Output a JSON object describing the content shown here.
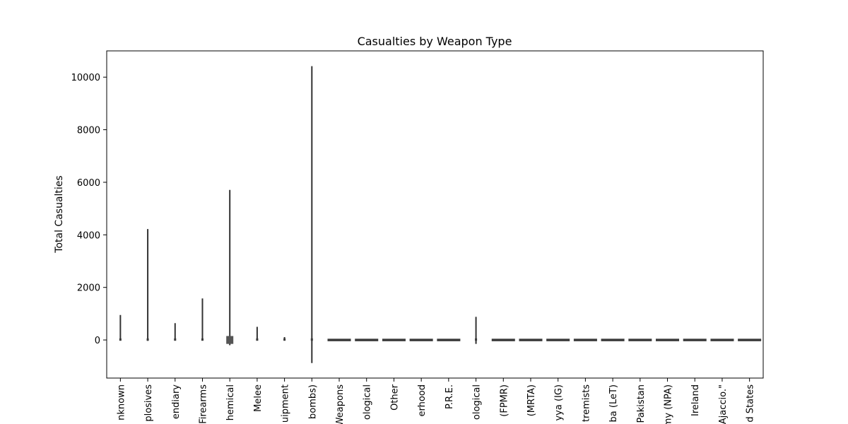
{
  "chart_data": {
    "type": "violin",
    "title": "Casualties by Weapon Type",
    "xlabel": "",
    "ylabel": "Total Casualties",
    "ylim": [
      -1450,
      11000
    ],
    "yticks": [
      0,
      2000,
      4000,
      6000,
      8000,
      10000
    ],
    "categories": [
      "nknown",
      "plosives",
      "endiary",
      "Firearms",
      "hemical",
      "Melee",
      "uipment",
      "bombs)",
      "Weapons",
      "ological",
      "Other",
      "erhood",
      "P.R.E.",
      "ological",
      "(FPMR)",
      "(MRTA)",
      "yya (IG)",
      "tremists",
      "ba (LeT)",
      "Pakistan",
      "my (NPA)",
      "Ireland",
      "Ajaccio.\"",
      "d States"
    ],
    "series": [
      {
        "values": [
          {
            "min": 0,
            "max": 950
          },
          {
            "min": -30,
            "max": 4220
          },
          {
            "min": 0,
            "max": 640
          },
          {
            "min": 0,
            "max": 1580
          },
          {
            "min": -200,
            "max": 5710
          },
          {
            "min": 0,
            "max": 500
          },
          {
            "min": -20,
            "max": 110
          },
          {
            "min": -880,
            "max": 10420
          },
          {
            "min": -20,
            "max": 20
          },
          {
            "min": -5,
            "max": 5
          },
          {
            "min": -5,
            "max": 40
          },
          {
            "min": 0,
            "max": 0
          },
          {
            "min": 0,
            "max": 0
          },
          {
            "min": -150,
            "max": 880
          },
          {
            "min": 0,
            "max": 0
          },
          {
            "min": 0,
            "max": 0
          },
          {
            "min": 0,
            "max": 0
          },
          {
            "min": 0,
            "max": 0
          },
          {
            "min": 0,
            "max": 0
          },
          {
            "min": 0,
            "max": 0
          },
          {
            "min": 0,
            "max": 0
          },
          {
            "min": 0,
            "max": 0
          },
          {
            "min": 0,
            "max": 0
          },
          {
            "min": 0,
            "max": 0
          }
        ]
      }
    ],
    "grid": false,
    "legend": "none"
  }
}
